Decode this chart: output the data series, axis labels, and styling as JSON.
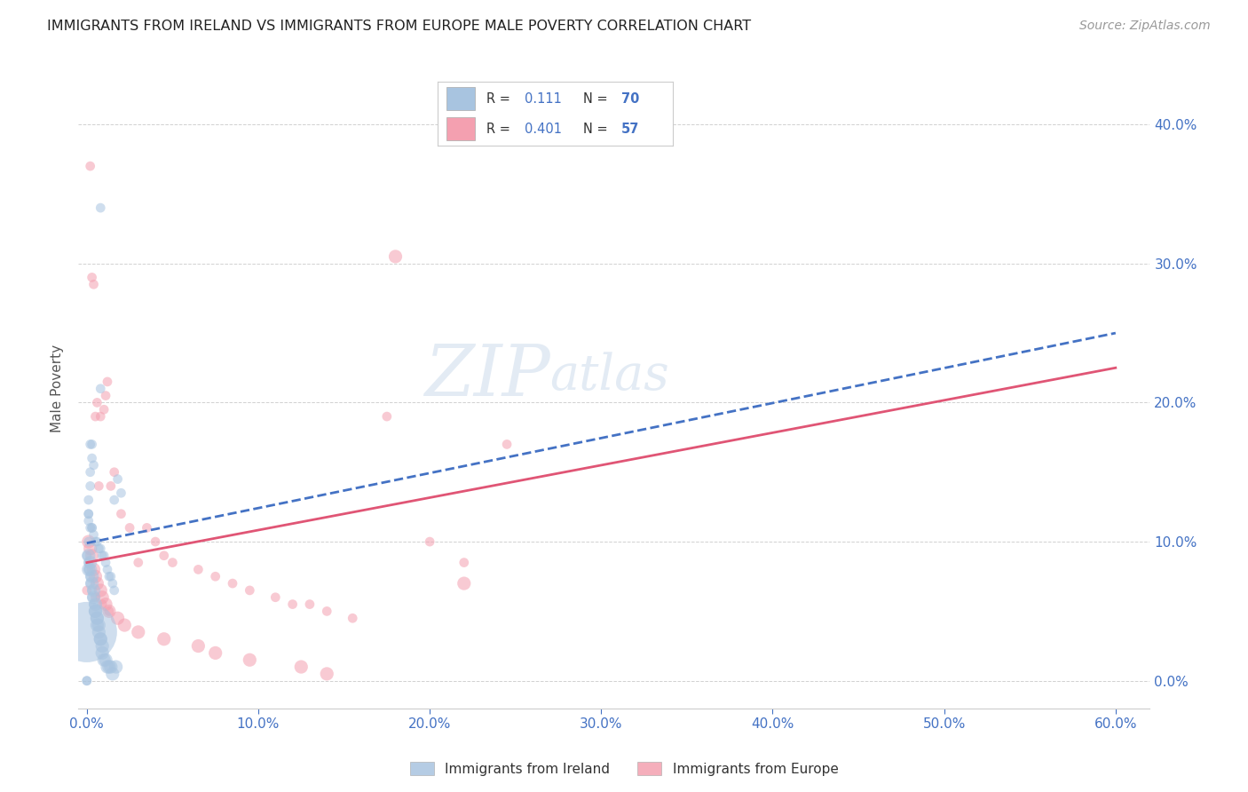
{
  "title": "IMMIGRANTS FROM IRELAND VS IMMIGRANTS FROM EUROPE MALE POVERTY CORRELATION CHART",
  "source": "Source: ZipAtlas.com",
  "xlabel_ticks": [
    "0.0%",
    "10.0%",
    "20.0%",
    "30.0%",
    "40.0%",
    "50.0%",
    "60.0%"
  ],
  "xlabel_vals": [
    0.0,
    0.1,
    0.2,
    0.3,
    0.4,
    0.5,
    0.6
  ],
  "ylabel": "Male Poverty",
  "ylabel_ticks_right": [
    "0.0%",
    "10.0%",
    "20.0%",
    "30.0%",
    "40.0%"
  ],
  "ylabel_vals_right": [
    0.0,
    0.1,
    0.2,
    0.3,
    0.4
  ],
  "xlim": [
    -0.005,
    0.62
  ],
  "ylim": [
    -0.02,
    0.44
  ],
  "ireland_R": 0.111,
  "ireland_N": 70,
  "europe_R": 0.401,
  "europe_N": 57,
  "ireland_color": "#a8c4e0",
  "europe_color": "#f4a0b0",
  "ireland_line_color": "#4472c4",
  "europe_line_color": "#e05575",
  "background_color": "#ffffff",
  "grid_color": "#cccccc",
  "axis_color": "#4472c4",
  "ireland_scatter_x": [
    0.008,
    0.008,
    0.002,
    0.003,
    0.003,
    0.004,
    0.002,
    0.002,
    0.001,
    0.001,
    0.001,
    0.002,
    0.003,
    0.003,
    0.004,
    0.005,
    0.006,
    0.007,
    0.008,
    0.009,
    0.01,
    0.011,
    0.012,
    0.013,
    0.014,
    0.015,
    0.016,
    0.016,
    0.018,
    0.02,
    0.001,
    0.001,
    0.002,
    0.002,
    0.003,
    0.003,
    0.004,
    0.004,
    0.005,
    0.005,
    0.005,
    0.006,
    0.006,
    0.006,
    0.007,
    0.007,
    0.008,
    0.008,
    0.009,
    0.009,
    0.01,
    0.011,
    0.012,
    0.013,
    0.014,
    0.015,
    0.017,
    0.001,
    0.001,
    0.0,
    0.001,
    0.001,
    0.002,
    0.002,
    0.003,
    0.003,
    0.004,
    0.0,
    0.0,
    0.0
  ],
  "ireland_scatter_y": [
    0.34,
    0.21,
    0.17,
    0.17,
    0.16,
    0.155,
    0.15,
    0.14,
    0.13,
    0.12,
    0.115,
    0.11,
    0.11,
    0.11,
    0.105,
    0.1,
    0.1,
    0.095,
    0.095,
    0.09,
    0.09,
    0.085,
    0.08,
    0.075,
    0.075,
    0.07,
    0.065,
    0.13,
    0.145,
    0.135,
    0.08,
    0.09,
    0.085,
    0.08,
    0.075,
    0.07,
    0.065,
    0.06,
    0.055,
    0.05,
    0.05,
    0.045,
    0.045,
    0.04,
    0.04,
    0.035,
    0.03,
    0.03,
    0.025,
    0.02,
    0.015,
    0.015,
    0.01,
    0.01,
    0.01,
    0.005,
    0.01,
    0.12,
    0.1,
    0.09,
    0.085,
    0.08,
    0.075,
    0.07,
    0.065,
    0.06,
    0.055,
    0.0,
    0.0,
    0.035
  ],
  "ireland_scatter_size": [
    60,
    60,
    60,
    60,
    60,
    60,
    60,
    60,
    60,
    60,
    60,
    60,
    60,
    60,
    60,
    60,
    60,
    60,
    60,
    60,
    60,
    60,
    60,
    60,
    60,
    60,
    60,
    60,
    60,
    60,
    120,
    120,
    120,
    120,
    120,
    120,
    120,
    120,
    120,
    120,
    120,
    120,
    120,
    120,
    120,
    120,
    120,
    120,
    120,
    120,
    120,
    120,
    120,
    120,
    120,
    120,
    120,
    60,
    60,
    60,
    60,
    60,
    60,
    60,
    60,
    60,
    60,
    60,
    60,
    2400
  ],
  "europe_scatter_x": [
    0.002,
    0.003,
    0.004,
    0.005,
    0.006,
    0.007,
    0.008,
    0.01,
    0.011,
    0.012,
    0.014,
    0.016,
    0.02,
    0.025,
    0.03,
    0.035,
    0.04,
    0.045,
    0.05,
    0.065,
    0.075,
    0.085,
    0.095,
    0.11,
    0.12,
    0.13,
    0.14,
    0.155,
    0.175,
    0.2,
    0.22,
    0.245,
    0.001,
    0.002,
    0.003,
    0.004,
    0.005,
    0.006,
    0.008,
    0.009,
    0.011,
    0.013,
    0.018,
    0.022,
    0.03,
    0.045,
    0.065,
    0.075,
    0.095,
    0.125,
    0.14,
    0.18,
    0.22,
    0.0,
    0.005,
    0.009,
    0.013
  ],
  "europe_scatter_y": [
    0.37,
    0.29,
    0.285,
    0.19,
    0.2,
    0.14,
    0.19,
    0.195,
    0.205,
    0.215,
    0.14,
    0.15,
    0.12,
    0.11,
    0.085,
    0.11,
    0.1,
    0.09,
    0.085,
    0.08,
    0.075,
    0.07,
    0.065,
    0.06,
    0.055,
    0.055,
    0.05,
    0.045,
    0.19,
    0.1,
    0.085,
    0.17,
    0.1,
    0.095,
    0.09,
    0.08,
    0.075,
    0.07,
    0.065,
    0.06,
    0.055,
    0.05,
    0.045,
    0.04,
    0.035,
    0.03,
    0.025,
    0.02,
    0.015,
    0.01,
    0.005,
    0.305,
    0.07,
    0.065,
    0.06,
    0.055,
    0.05
  ],
  "europe_scatter_size": [
    60,
    60,
    60,
    60,
    60,
    60,
    60,
    60,
    60,
    60,
    60,
    60,
    60,
    60,
    60,
    60,
    60,
    60,
    60,
    60,
    60,
    60,
    60,
    60,
    60,
    60,
    60,
    60,
    60,
    60,
    60,
    60,
    120,
    120,
    120,
    120,
    120,
    120,
    120,
    120,
    120,
    120,
    120,
    120,
    120,
    120,
    120,
    120,
    120,
    120,
    120,
    120,
    120,
    60,
    60,
    60,
    60
  ],
  "ireland_trend_x": [
    0.0,
    0.6
  ],
  "ireland_trend_y": [
    0.099,
    0.25
  ],
  "europe_trend_x": [
    0.0,
    0.6
  ],
  "europe_trend_y": [
    0.085,
    0.225
  ]
}
